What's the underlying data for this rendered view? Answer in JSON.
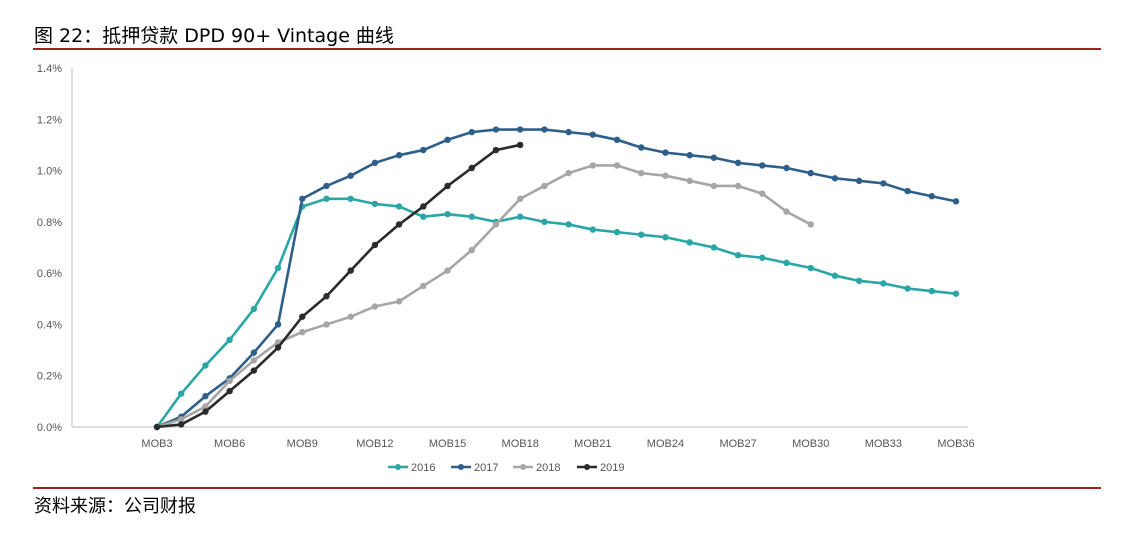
{
  "header": {
    "title": "图 22：抵押贷款 DPD 90+ Vintage 曲线"
  },
  "footer": {
    "source": "资料来源：公司财报"
  },
  "chart_data": {
    "type": "line",
    "title": "",
    "xlabel": "",
    "ylabel": "",
    "ylim": [
      0,
      1.4
    ],
    "y_ticks": [
      "0.0%",
      "0.2%",
      "0.4%",
      "0.6%",
      "0.8%",
      "1.0%",
      "1.2%",
      "1.4%"
    ],
    "x_tick_labels": [
      "MOB3",
      "MOB6",
      "MOB9",
      "MOB12",
      "MOB15",
      "MOB18",
      "MOB21",
      "MOB24",
      "MOB27",
      "MOB30",
      "MOB33",
      "MOB36"
    ],
    "x_tick_mobs": [
      3,
      6,
      9,
      12,
      15,
      18,
      21,
      24,
      27,
      30,
      33,
      36
    ],
    "x_range": [
      3,
      36
    ],
    "grid": false,
    "legend_position": "bottom",
    "series": [
      {
        "name": "2016",
        "color": "#2ba6a6",
        "mob_start": 3,
        "values": [
          0.0,
          0.13,
          0.24,
          0.34,
          0.46,
          0.62,
          0.86,
          0.89,
          0.89,
          0.87,
          0.86,
          0.82,
          0.83,
          0.82,
          0.8,
          0.82,
          0.8,
          0.79,
          0.77,
          0.76,
          0.75,
          0.74,
          0.72,
          0.7,
          0.67,
          0.66,
          0.64,
          0.62,
          0.59,
          0.57,
          0.56,
          0.54,
          0.53,
          0.52
        ]
      },
      {
        "name": "2017",
        "color": "#2e5f8a",
        "mob_start": 3,
        "values": [
          0.0,
          0.04,
          0.12,
          0.19,
          0.29,
          0.4,
          0.89,
          0.94,
          0.98,
          1.03,
          1.06,
          1.08,
          1.12,
          1.15,
          1.16,
          1.16,
          1.16,
          1.15,
          1.14,
          1.12,
          1.09,
          1.07,
          1.06,
          1.05,
          1.03,
          1.02,
          1.01,
          0.99,
          0.97,
          0.96,
          0.95,
          0.92,
          0.9,
          0.88
        ]
      },
      {
        "name": "2018",
        "color": "#a6a6a6",
        "mob_start": 3,
        "values": [
          0.0,
          0.03,
          0.08,
          0.18,
          0.26,
          0.33,
          0.37,
          0.4,
          0.43,
          0.47,
          0.49,
          0.55,
          0.61,
          0.69,
          0.79,
          0.89,
          0.94,
          0.99,
          1.02,
          1.02,
          0.99,
          0.98,
          0.96,
          0.94,
          0.94,
          0.91,
          0.84,
          0.79
        ]
      },
      {
        "name": "2019",
        "color": "#2b2b2b",
        "mob_start": 3,
        "values": [
          0.0,
          0.01,
          0.06,
          0.14,
          0.22,
          0.31,
          0.43,
          0.51,
          0.61,
          0.71,
          0.79,
          0.86,
          0.94,
          1.01,
          1.08,
          1.1
        ]
      }
    ]
  }
}
